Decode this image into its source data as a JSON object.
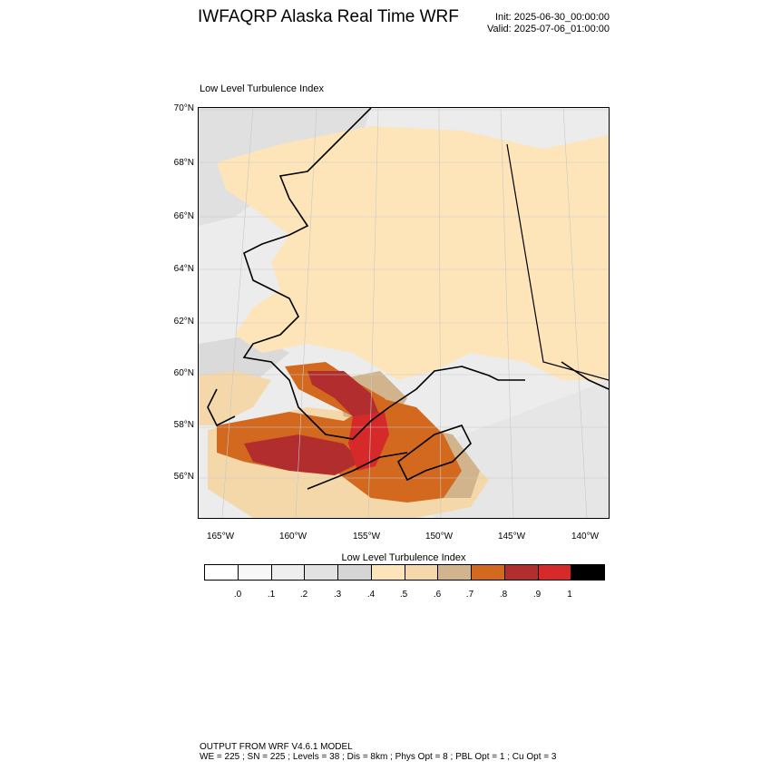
{
  "header": {
    "title": "IWFAQRP Alaska Real Time WRF",
    "init": "Init: 2025-06-30_00:00:00",
    "valid": "Valid: 2025-07-06_01:00:00"
  },
  "panel": {
    "title": "Low Level Turbulence Index"
  },
  "map": {
    "lat_labels": [
      "70°N",
      "68°N",
      "66°N",
      "64°N",
      "62°N",
      "60°N",
      "58°N",
      "56°N"
    ],
    "lon_labels": [
      "165°W",
      "160°W",
      "155°W",
      "150°W",
      "145°W",
      "140°W"
    ]
  },
  "colorbar": {
    "title": "Low Level Turbulence Index",
    "labels": [
      ".0",
      ".1",
      ".2",
      ".3",
      ".4",
      ".5",
      ".6",
      ".7",
      ".8",
      ".9",
      "1"
    ],
    "colors": [
      "#ffffff",
      "#f7f7f7",
      "#eeeeee",
      "#e2e2e2",
      "#d5d5d5",
      "#fde5b9",
      "#f5d8aa",
      "#d2b48c",
      "#d2691e",
      "#b22e2e",
      "#d62a2a",
      "#000000"
    ]
  },
  "footer": {
    "line1": "OUTPUT FROM WRF V4.6.1 MODEL",
    "line2": "WE = 225 ; SN = 225 ; Levels = 38 ; Dis = 8km ; Phys Opt = 8 ; PBL Opt = 1 ; Cu Opt = 3"
  }
}
